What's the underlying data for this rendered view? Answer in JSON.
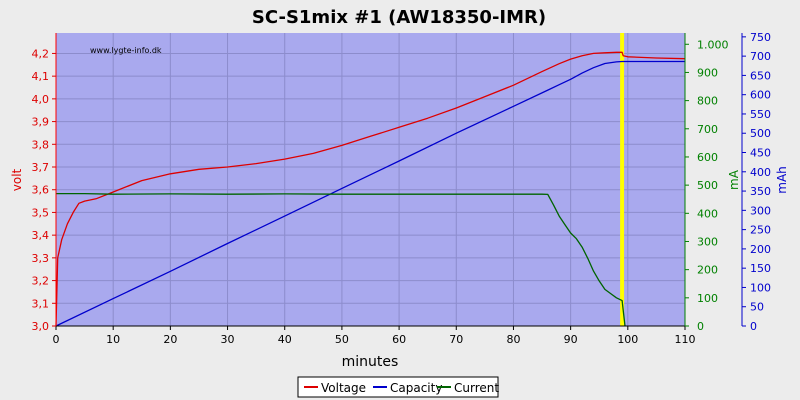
{
  "colors": {
    "plot_bg": "#a9a9ee",
    "grid": "#8c8ccc",
    "voltage": "#dd0000",
    "capacity": "#0000cc",
    "current": "#006400",
    "marker": "#ffff00"
  },
  "chart_data": {
    "type": "line",
    "title": "SC-S1mix #1 (AW18350-IMR)",
    "watermark": "www.lygte-info.dk",
    "xlabel": "minutes",
    "xlim": [
      0,
      110
    ],
    "x_ticks": [
      0,
      10,
      20,
      30,
      40,
      50,
      60,
      70,
      80,
      90,
      100,
      110
    ],
    "grid": true,
    "legend_position": "bottom-center",
    "marker_line_x": 99,
    "axes": {
      "volt": {
        "label": "volt",
        "side": "left",
        "lim": [
          3.0,
          4.29
        ],
        "ticks": [
          3.0,
          3.1,
          3.2,
          3.3,
          3.4,
          3.5,
          3.6,
          3.7,
          3.8,
          3.9,
          4.0,
          4.1,
          4.2
        ],
        "tick_labels": [
          "3,0",
          "3,1",
          "3,2",
          "3,3",
          "3,4",
          "3,5",
          "3,6",
          "3,7",
          "3,8",
          "3,9",
          "4,0",
          "4,1",
          "4,2"
        ]
      },
      "mA": {
        "label": "mA",
        "side": "right",
        "lim": [
          0,
          1040
        ],
        "ticks": [
          0,
          100,
          200,
          300,
          400,
          500,
          600,
          700,
          800,
          900,
          1000
        ],
        "tick_labels": [
          "0",
          "100",
          "200",
          "300",
          "400",
          "500",
          "600",
          "700",
          "800",
          "900",
          "1.000"
        ]
      },
      "mAh": {
        "label": "mAh",
        "side": "right",
        "lim": [
          0,
          760
        ],
        "ticks": [
          0,
          50,
          100,
          150,
          200,
          250,
          300,
          350,
          400,
          450,
          500,
          550,
          600,
          650,
          700,
          750
        ],
        "tick_labels": [
          "0",
          "50",
          "100",
          "150",
          "200",
          "250",
          "300",
          "350",
          "400",
          "450",
          "500",
          "550",
          "600",
          "650",
          "700",
          "750"
        ]
      }
    },
    "series": [
      {
        "name": "Voltage",
        "axis": "volt",
        "x": [
          0,
          0.3,
          1,
          2,
          3,
          4,
          5,
          7,
          10,
          15,
          20,
          25,
          30,
          35,
          40,
          45,
          50,
          55,
          60,
          65,
          70,
          75,
          80,
          85,
          88,
          90,
          92,
          94,
          96,
          98,
          99,
          99.2,
          100,
          105,
          110
        ],
        "y": [
          3.0,
          3.3,
          3.38,
          3.45,
          3.5,
          3.54,
          3.55,
          3.56,
          3.59,
          3.64,
          3.67,
          3.69,
          3.7,
          3.715,
          3.735,
          3.76,
          3.795,
          3.835,
          3.875,
          3.915,
          3.96,
          4.01,
          4.06,
          4.12,
          4.155,
          4.175,
          4.19,
          4.2,
          4.203,
          4.205,
          4.205,
          4.19,
          4.185,
          4.18,
          4.177
        ]
      },
      {
        "name": "Capacity",
        "axis": "mAh",
        "x": [
          0,
          10,
          20,
          30,
          40,
          50,
          60,
          70,
          80,
          86,
          88,
          90,
          92,
          94,
          96,
          98,
          99,
          110
        ],
        "y": [
          0,
          71,
          142,
          214,
          285,
          357,
          428,
          500,
          570,
          612,
          626,
          640,
          656,
          670,
          681,
          685,
          686,
          686
        ]
      },
      {
        "name": "Current",
        "axis": "mA",
        "x": [
          0,
          5,
          10,
          20,
          30,
          40,
          50,
          60,
          70,
          80,
          85,
          86,
          87,
          88,
          89,
          90,
          91,
          92,
          93,
          94,
          95,
          96,
          97,
          98,
          99,
          99.5
        ],
        "y": [
          470,
          470,
          468,
          469,
          468,
          469,
          468,
          468,
          468,
          468,
          468,
          467,
          430,
          390,
          360,
          330,
          310,
          280,
          240,
          195,
          160,
          130,
          115,
          100,
          90,
          0
        ]
      }
    ]
  }
}
